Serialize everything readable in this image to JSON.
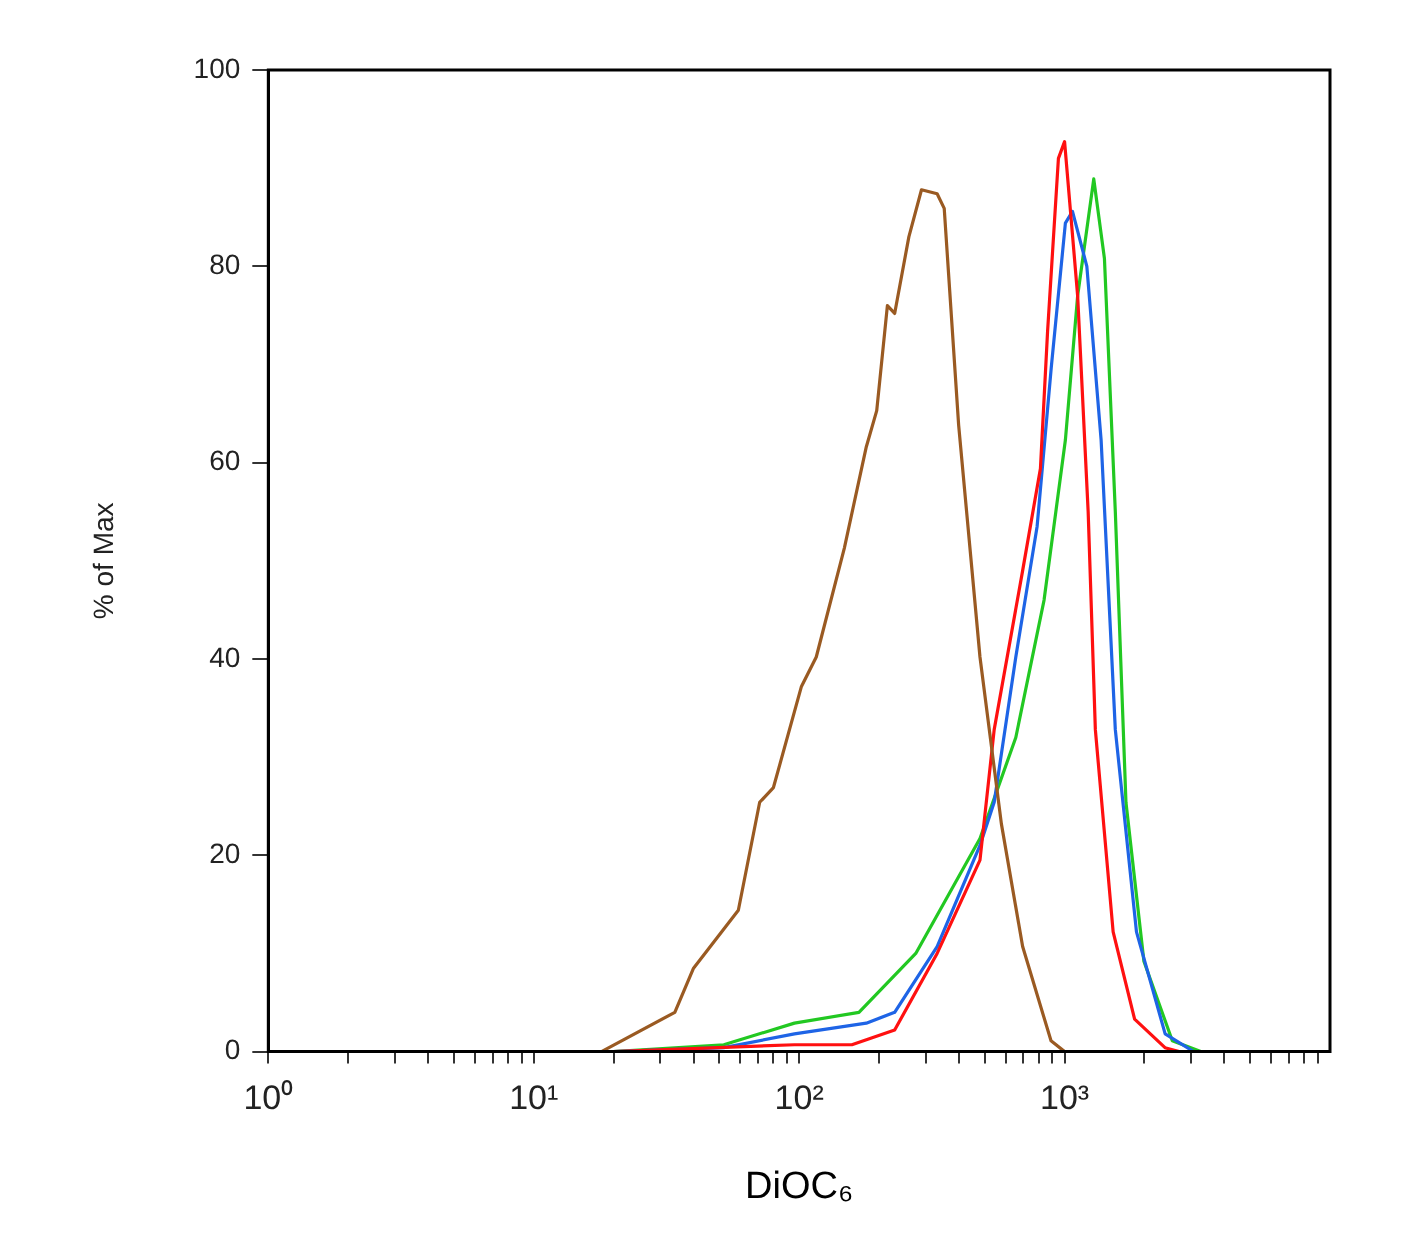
{
  "chart_data": {
    "type": "line",
    "xlabel": "DiOC₆",
    "ylabel": "% of Max",
    "log": "x",
    "grid": false,
    "legend": false,
    "marker": "none",
    "line_style": "solid",
    "xlim": [
      1,
      10000
    ],
    "ylim": [
      0,
      100
    ],
    "xticks": [
      {
        "value": 1,
        "label": "10⁰"
      },
      {
        "value": 2,
        "label": null
      },
      {
        "value": 3,
        "label": null
      },
      {
        "value": 4,
        "label": null
      },
      {
        "value": 5,
        "label": null
      },
      {
        "value": 6,
        "label": null
      },
      {
        "value": 7,
        "label": null
      },
      {
        "value": 8,
        "label": null
      },
      {
        "value": 9,
        "label": null
      },
      {
        "value": 10,
        "label": "10¹"
      },
      {
        "value": 20,
        "label": null
      },
      {
        "value": 30,
        "label": null
      },
      {
        "value": 40,
        "label": null
      },
      {
        "value": 50,
        "label": null
      },
      {
        "value": 60,
        "label": null
      },
      {
        "value": 70,
        "label": null
      },
      {
        "value": 80,
        "label": null
      },
      {
        "value": 90,
        "label": null
      },
      {
        "value": 100,
        "label": "10²"
      },
      {
        "value": 200,
        "label": null
      },
      {
        "value": 300,
        "label": null
      },
      {
        "value": 400,
        "label": null
      },
      {
        "value": 500,
        "label": null
      },
      {
        "value": 600,
        "label": null
      },
      {
        "value": 700,
        "label": null
      },
      {
        "value": 800,
        "label": null
      },
      {
        "value": 900,
        "label": null
      },
      {
        "value": 1000,
        "label": "10³"
      },
      {
        "value": 2000,
        "label": null
      },
      {
        "value": 3000,
        "label": null
      },
      {
        "value": 4000,
        "label": null
      },
      {
        "value": 5000,
        "label": null
      },
      {
        "value": 6000,
        "label": null
      },
      {
        "value": 7000,
        "label": null
      },
      {
        "value": 8000,
        "label": null
      },
      {
        "value": 9000,
        "label": null
      }
    ],
    "yticks": [
      0,
      20,
      40,
      60,
      80,
      100
    ],
    "series": [
      {
        "color": "#9a5a22",
        "x": [
          18,
          34,
          40,
          59,
          71,
          80,
          102,
          116,
          148,
          179,
          196,
          215,
          229,
          259,
          289,
          331,
          352,
          399,
          480,
          578,
          695,
          889,
          1000
        ],
        "values": [
          0,
          4,
          8.5,
          14.4,
          25.4,
          26.9,
          37.2,
          40.2,
          51.3,
          61.6,
          65.3,
          76,
          75.2,
          83,
          87.8,
          87.4,
          85.9,
          63.8,
          40.2,
          23.2,
          10.7,
          1.1,
          0
        ]
      },
      {
        "color": "#ff1010",
        "x": [
          20,
          96,
          158,
          229,
          331,
          480,
          543,
          695,
          811,
          863,
          948,
          1000,
          1120,
          1227,
          1306,
          1524,
          1836,
          2390,
          2700
        ],
        "values": [
          0,
          0.7,
          0.7,
          2.2,
          10,
          19.5,
          32.8,
          49,
          59.4,
          73.4,
          91,
          92.7,
          77,
          55,
          32.8,
          12.2,
          3.3,
          0.4,
          0
        ]
      },
      {
        "color": "#1e64e6",
        "x": [
          20,
          52,
          96,
          179,
          229,
          331,
          480,
          543,
          655,
          788,
          891,
          1007,
          1071,
          1213,
          1373,
          1553,
          1866,
          2393,
          3063
        ],
        "values": [
          0,
          0.4,
          1.8,
          2.9,
          4,
          10.7,
          21,
          25.4,
          40.2,
          53.5,
          69.7,
          84.4,
          85.6,
          80,
          62.3,
          32.8,
          12.2,
          1.8,
          0
        ]
      },
      {
        "color": "#22c822",
        "x": [
          20,
          52,
          96,
          168,
          275,
          480,
          655,
          837,
          1007,
          1120,
          1288,
          1413,
          1553,
          1703,
          1990,
          2546,
          3259
        ],
        "values": [
          0,
          0.7,
          2.9,
          4,
          10,
          21.7,
          32,
          46,
          62.3,
          77,
          88.9,
          80.8,
          55,
          25.4,
          9.2,
          1.1,
          0
        ]
      }
    ]
  }
}
